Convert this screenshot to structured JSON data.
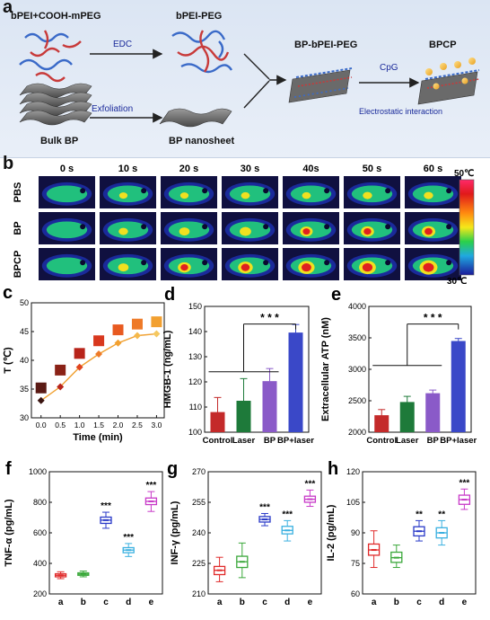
{
  "panel_letters": {
    "a": "a",
    "b": "b",
    "c": "c",
    "d": "d",
    "e": "e",
    "f": "f",
    "g": "g",
    "h": "h"
  },
  "panel_a": {
    "reagent_label": "bPEI+COOH-mPEG",
    "edc_label": "EDC",
    "bpei_peg_label": "bPEI-PEG",
    "exfoliation_label": "Exfoliation",
    "bulk_bp_label": "Bulk BP",
    "bp_nanosheet_label": "BP nanosheet",
    "bp_bpei_peg_label": "BP-bPEI-PEG",
    "cpg_label": "CpG",
    "bpcp_label": "BPCP",
    "electrostatic_label": "Electrostatic interaction"
  },
  "panel_b": {
    "time_labels": [
      "0 s",
      "10 s",
      "20 s",
      "30 s",
      "40s",
      "50 s",
      "60 s"
    ],
    "row_labels": [
      "PBS",
      "BP",
      "BPCP"
    ],
    "colorbar_max": "50℃",
    "colorbar_min": "30℃",
    "colors": {
      "cold": "#1a2a9a",
      "mid": "#22d07a",
      "warm": "#f0e020",
      "hot": "#e02020"
    }
  },
  "chart_data": [
    {
      "panel": "c",
      "type": "scatter",
      "xlabel": "Time (min)",
      "ylabel": "T (℃)",
      "xlim": [
        -0.25,
        3.2
      ],
      "ylim": [
        30,
        50
      ],
      "x_ticks": [
        "0.0",
        "0.5",
        "1.0",
        "1.5",
        "2.0",
        "2.5",
        "3.0"
      ],
      "y_ticks": [
        "30",
        "35",
        "40",
        "45",
        "50"
      ],
      "series": [
        {
          "marker": "square",
          "x": [
            0.0,
            0.5,
            1.0,
            1.5,
            2.0,
            2.5,
            3.0
          ],
          "values": [
            35.2,
            38.3,
            41.2,
            43.4,
            45.3,
            46.3,
            46.7
          ],
          "colors": [
            "#5a1a14",
            "#8a2216",
            "#b8241a",
            "#d8381e",
            "#e85a20",
            "#ee7a28",
            "#f2a030"
          ]
        },
        {
          "marker": "diamond",
          "x": [
            0.0,
            0.5,
            1.0,
            1.5,
            2.0,
            2.5,
            3.0
          ],
          "values": [
            33.0,
            35.4,
            38.8,
            41.1,
            43.0,
            44.3,
            44.6
          ],
          "colors": [
            "#3a1410",
            "#b8241a",
            "#e0441e",
            "#ee7a28",
            "#f2a030",
            "#f5b84a",
            "#f5c860"
          ]
        }
      ]
    },
    {
      "panel": "d",
      "type": "bar",
      "ylabel": "HMGB-1 (ng/mL)",
      "ylim": [
        100,
        150
      ],
      "y_ticks": [
        "100",
        "110",
        "120",
        "130",
        "140",
        "150"
      ],
      "categories": [
        "Control",
        "Laser",
        "BP",
        "BP+laser"
      ],
      "values": [
        108.0,
        112.5,
        120.3,
        139.6
      ],
      "errors": [
        5.8,
        8.8,
        5.0,
        3.2
      ],
      "colors": [
        "#c42a2a",
        "#1e7a3a",
        "#8a5ac8",
        "#3a48c8"
      ],
      "annotation": "* * *"
    },
    {
      "panel": "e",
      "type": "bar",
      "ylabel": "Extracellular ATP (nM)",
      "ylim": [
        2000,
        4000
      ],
      "y_ticks": [
        "2000",
        "2500",
        "3000",
        "3500",
        "4000"
      ],
      "categories": [
        "Control",
        "Laser",
        "BP",
        "BP+laser"
      ],
      "values": [
        2270,
        2480,
        2620,
        3450
      ],
      "errors": [
        90,
        90,
        50,
        40
      ],
      "colors": [
        "#c42a2a",
        "#1e7a3a",
        "#8a5ac8",
        "#3a48c8"
      ],
      "annotation": "* * *"
    },
    {
      "panel": "f",
      "type": "box",
      "ylabel": "TNF-α (pg/mL)",
      "ylim": [
        200,
        1000
      ],
      "y_ticks": [
        "200",
        "400",
        "600",
        "800",
        "1000"
      ],
      "categories": [
        "a",
        "b",
        "c",
        "d",
        "e"
      ],
      "colors": [
        "#e02a2a",
        "#3aa83a",
        "#2a3ac8",
        "#3ab0e0",
        "#c83ac8"
      ],
      "boxes": [
        {
          "min": 300,
          "q1": 312,
          "median": 322,
          "q3": 332,
          "max": 345
        },
        {
          "min": 312,
          "q1": 322,
          "median": 330,
          "q3": 338,
          "max": 350
        },
        {
          "min": 630,
          "q1": 662,
          "median": 683,
          "q3": 703,
          "max": 735
        },
        {
          "min": 445,
          "q1": 470,
          "median": 487,
          "q3": 503,
          "max": 530
        },
        {
          "min": 740,
          "q1": 785,
          "median": 806,
          "q3": 828,
          "max": 870
        }
      ],
      "significance": [
        "",
        "",
        "***",
        "***",
        "***"
      ]
    },
    {
      "panel": "g",
      "type": "box",
      "ylabel": "INF-γ (pg/mL)",
      "ylim": [
        210,
        270
      ],
      "y_ticks": [
        "210",
        "225",
        "240",
        "255",
        "270"
      ],
      "categories": [
        "a",
        "b",
        "c",
        "d",
        "e"
      ],
      "colors": [
        "#e02a2a",
        "#3aa83a",
        "#2a3ac8",
        "#3ab0e0",
        "#c83ac8"
      ],
      "boxes": [
        {
          "min": 216.0,
          "q1": 219.5,
          "median": 221.6,
          "q3": 223.5,
          "max": 228.0
        },
        {
          "min": 218.0,
          "q1": 223.0,
          "median": 225.8,
          "q3": 228.5,
          "max": 235.0
        },
        {
          "min": 243.5,
          "q1": 245.3,
          "median": 246.6,
          "q3": 248.0,
          "max": 249.5
        },
        {
          "min": 236.0,
          "q1": 239.5,
          "median": 241.2,
          "q3": 243.2,
          "max": 246.0
        },
        {
          "min": 253.0,
          "q1": 255.0,
          "median": 256.5,
          "q3": 258.0,
          "max": 261.0
        }
      ],
      "significance": [
        "",
        "",
        "***",
        "***",
        "***"
      ]
    },
    {
      "panel": "h",
      "type": "box",
      "ylabel": "IL-2 (pg/mL)",
      "ylim": [
        60,
        120
      ],
      "y_ticks": [
        "60",
        "75",
        "90",
        "105",
        "120"
      ],
      "categories": [
        "a",
        "b",
        "c",
        "d",
        "e"
      ],
      "colors": [
        "#e02a2a",
        "#3aa83a",
        "#2a3ac8",
        "#3ab0e0",
        "#c83ac8"
      ],
      "boxes": [
        {
          "min": 73.0,
          "q1": 79.0,
          "median": 81.6,
          "q3": 84.5,
          "max": 91.0
        },
        {
          "min": 73.0,
          "q1": 75.5,
          "median": 77.8,
          "q3": 80.5,
          "max": 84.0
        },
        {
          "min": 86.0,
          "q1": 88.5,
          "median": 90.8,
          "q3": 93.0,
          "max": 96.0
        },
        {
          "min": 84.0,
          "q1": 87.5,
          "median": 90.0,
          "q3": 92.5,
          "max": 96.0
        },
        {
          "min": 101.5,
          "q1": 104.0,
          "median": 106.3,
          "q3": 108.5,
          "max": 111.5
        }
      ],
      "significance": [
        "",
        "",
        "**",
        "**",
        "***"
      ]
    }
  ]
}
